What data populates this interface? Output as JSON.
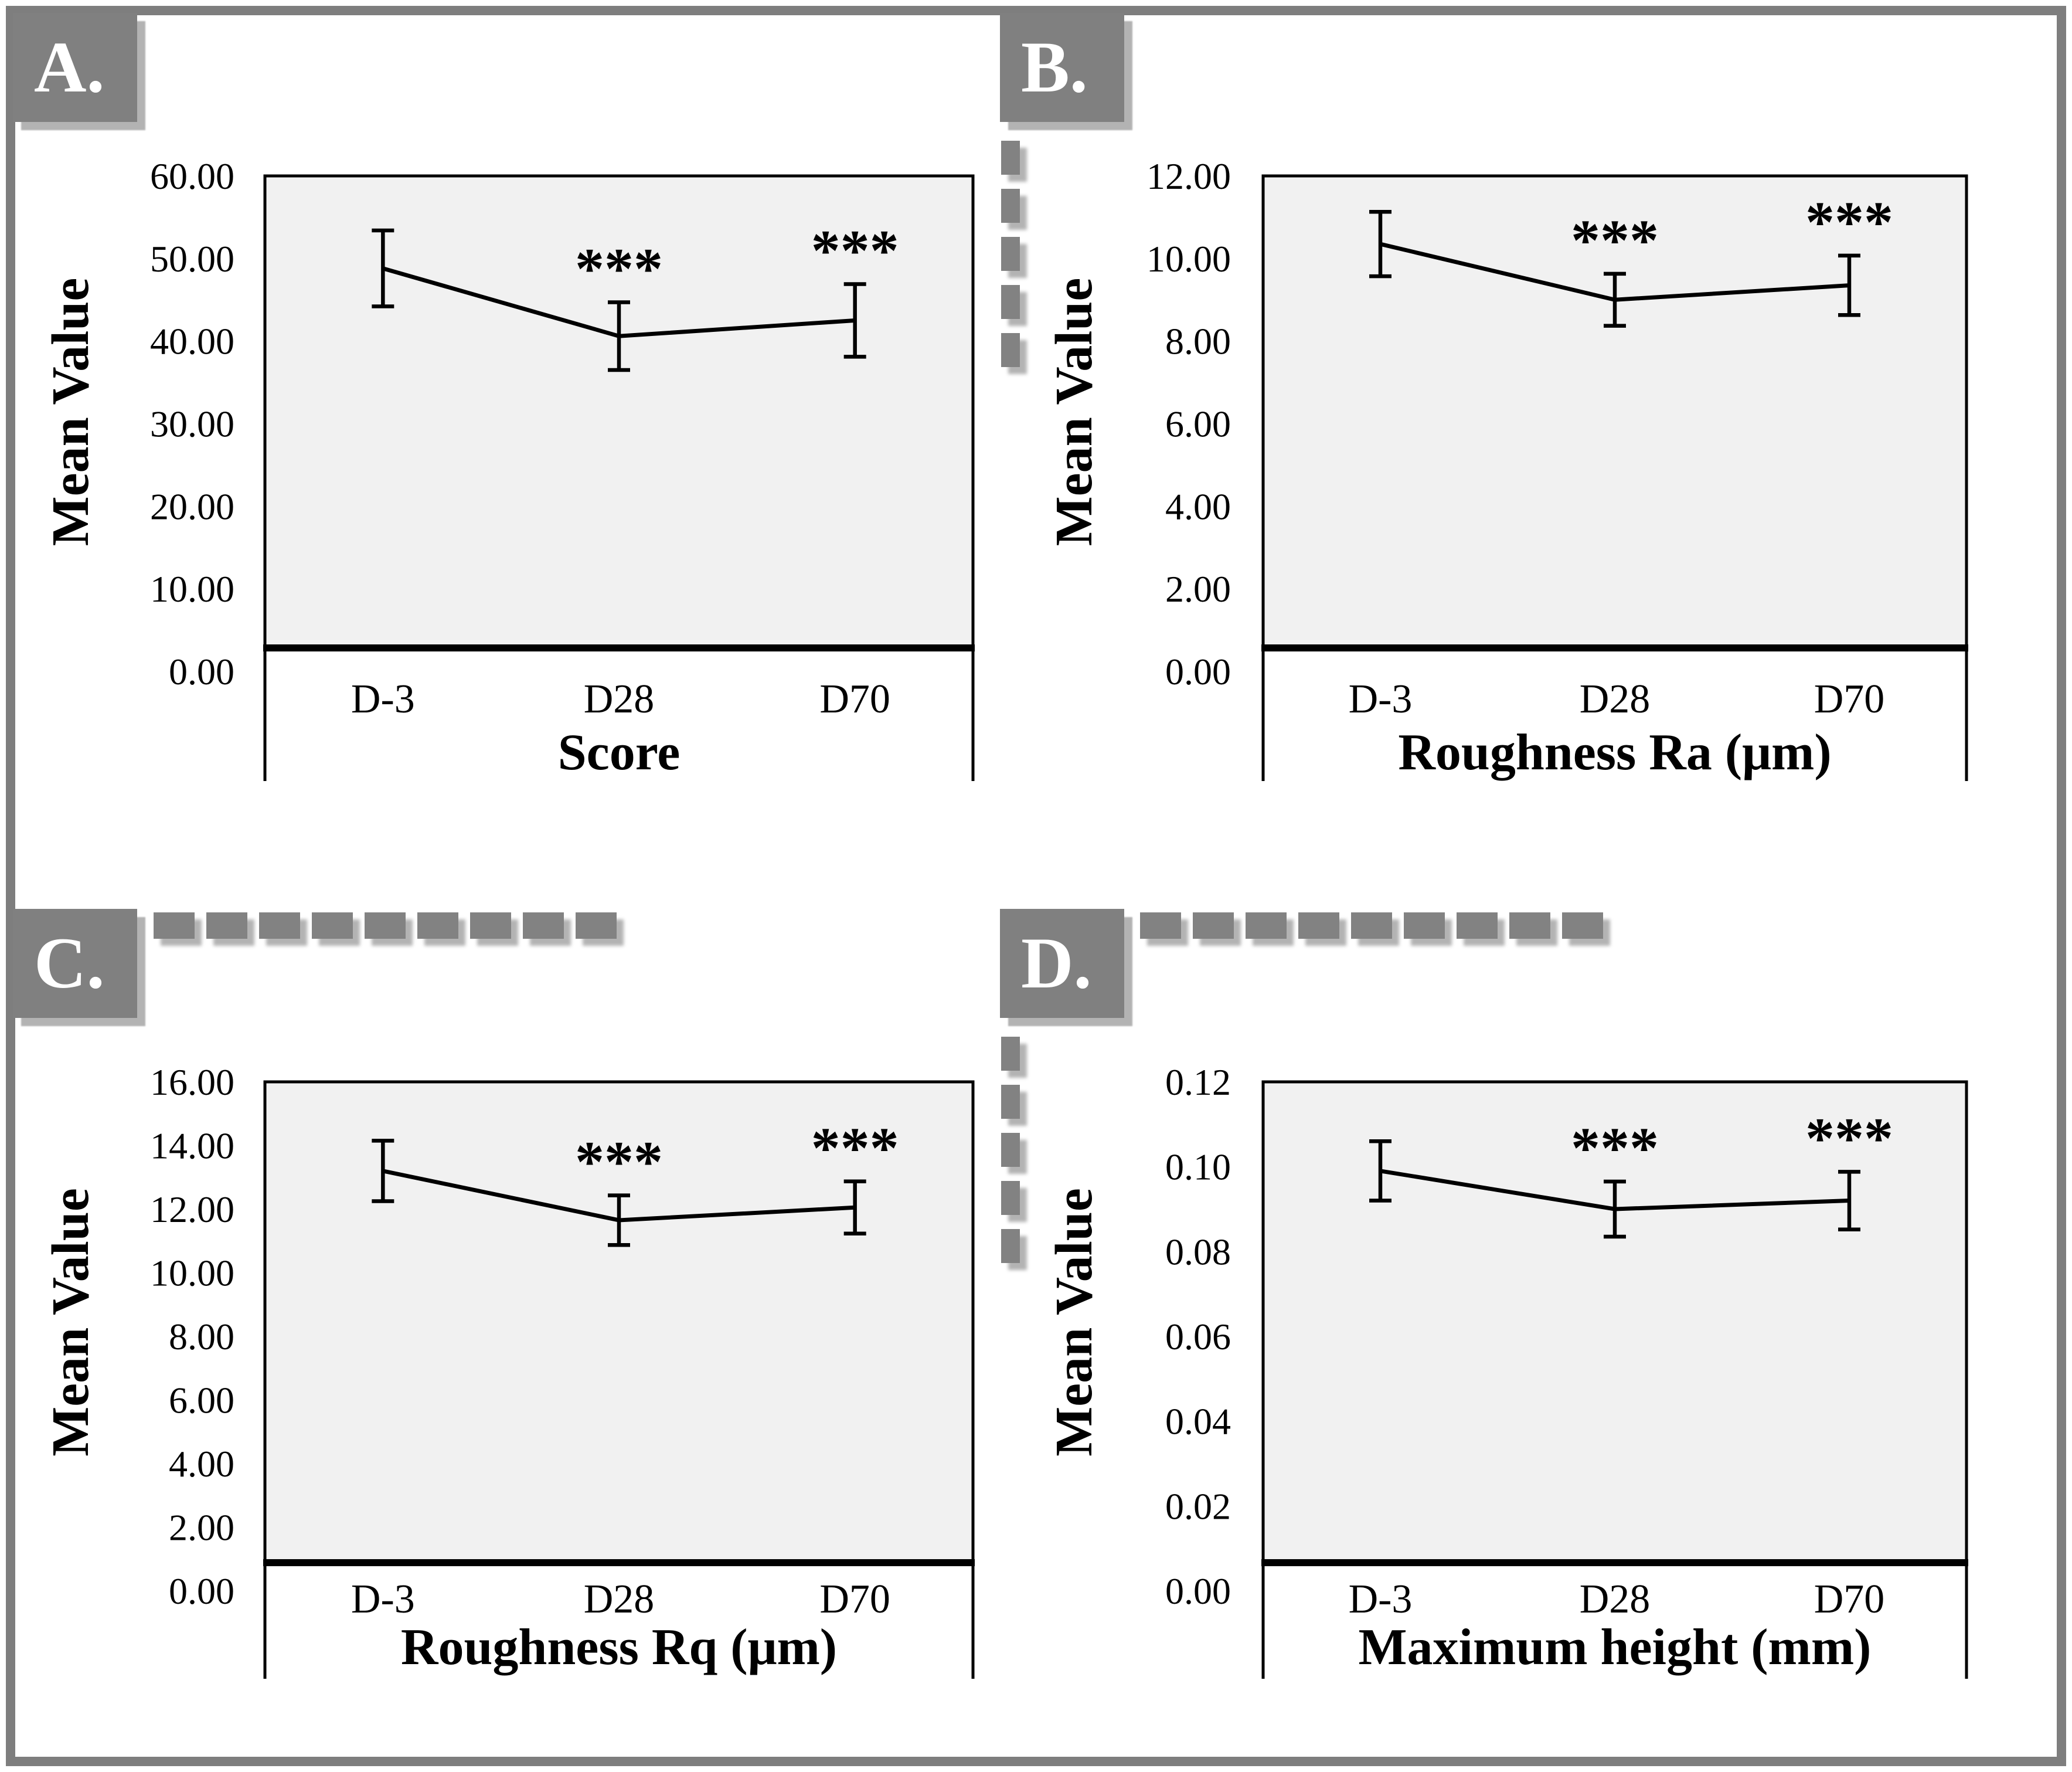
{
  "panels": [
    {
      "label": "A.",
      "chart_index": 0
    },
    {
      "label": "B.",
      "chart_index": 1
    },
    {
      "label": "C.",
      "chart_index": 2
    },
    {
      "label": "D.",
      "chart_index": 3
    }
  ],
  "chart_data": [
    {
      "panel": "A",
      "type": "line",
      "categories": [
        "D-3",
        "D28",
        "D70"
      ],
      "values": [
        48.8,
        40.6,
        42.5
      ],
      "errors": [
        4.6,
        4.1,
        4.4
      ],
      "significance": [
        "",
        "***",
        "***"
      ],
      "xlabel": "Score",
      "ylabel": "Mean Value",
      "ylim": [
        0,
        60
      ],
      "ytick_step": 10,
      "ytick_decimals": 2,
      "grid": false,
      "legend": false
    },
    {
      "panel": "B",
      "type": "line",
      "categories": [
        "D-3",
        "D28",
        "D70"
      ],
      "values": [
        10.35,
        9.0,
        9.35
      ],
      "errors": [
        0.78,
        0.63,
        0.72
      ],
      "significance": [
        "",
        "***",
        "***"
      ],
      "xlabel": "Roughness Ra (μm)",
      "ylabel": "Mean Value",
      "ylim": [
        0,
        12
      ],
      "ytick_step": 2,
      "ytick_decimals": 2,
      "grid": false,
      "legend": false
    },
    {
      "panel": "C",
      "type": "line",
      "categories": [
        "D-3",
        "D28",
        "D70"
      ],
      "values": [
        13.2,
        11.65,
        12.05
      ],
      "errors": [
        0.95,
        0.78,
        0.82
      ],
      "significance": [
        "",
        "***",
        "***"
      ],
      "xlabel": "Roughness Rq (μm)",
      "ylabel": "Mean Value",
      "ylim": [
        0,
        16
      ],
      "ytick_step": 2,
      "ytick_decimals": 2,
      "grid": false,
      "legend": false
    },
    {
      "panel": "D",
      "type": "line",
      "categories": [
        "D-3",
        "D28",
        "D70"
      ],
      "values": [
        0.099,
        0.09,
        0.092
      ],
      "errors": [
        0.007,
        0.0065,
        0.0068
      ],
      "significance": [
        "",
        "***",
        "***"
      ],
      "xlabel": "Maximum height (mm)",
      "ylabel": "Mean Value",
      "ylim": [
        0,
        0.12
      ],
      "ytick_step": 0.02,
      "ytick_decimals": 2,
      "grid": false,
      "legend": false
    }
  ],
  "colors": {
    "panel_label_bg": "#808080",
    "panel_label_text": "#ffffff",
    "dash": "#828282",
    "shadow": "#b3b3b3",
    "frame": "#7e7e7e",
    "plot_bg": "#f1f1f1",
    "axis": "#000000"
  }
}
